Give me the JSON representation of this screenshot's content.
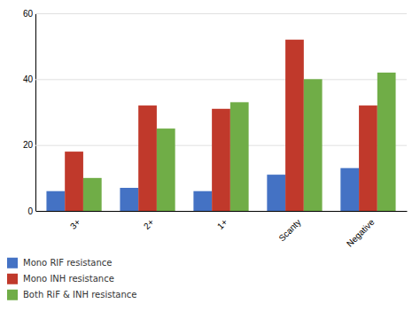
{
  "chart_data": {
    "type": "bar",
    "categories": [
      "3+",
      "2+",
      "1+",
      "Scanty",
      "Negative"
    ],
    "series": [
      {
        "name": "Mono RIF resistance",
        "color": "#4472C4",
        "values": [
          6,
          7,
          6,
          11,
          13
        ]
      },
      {
        "name": "Mono INH resistance",
        "color": "#C0392B",
        "values": [
          18,
          32,
          31,
          52,
          32
        ]
      },
      {
        "name": "Both RiF & INH resistance",
        "color": "#70AD47",
        "values": [
          10,
          25,
          33,
          40,
          42
        ]
      }
    ],
    "ylim": [
      0,
      60
    ],
    "yticks": [
      0,
      20,
      40,
      60
    ],
    "grid": true,
    "legend": "bottom"
  }
}
